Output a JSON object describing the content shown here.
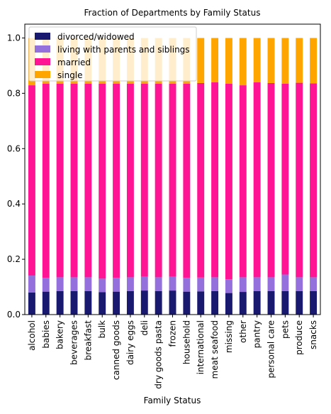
{
  "chart_data": {
    "type": "bar",
    "stacked": true,
    "title": "Fraction of Departments by Family Status",
    "xlabel": "Family Status",
    "ylabel": "",
    "ylim": [
      0,
      1.05
    ],
    "yticks": [
      "0.0",
      "0.2",
      "0.4",
      "0.6",
      "0.8",
      "1.0"
    ],
    "legend_position": "upper-left",
    "categories": [
      "alcohol",
      "babies",
      "bakery",
      "beverages",
      "breakfast",
      "bulk",
      "canned goods",
      "dairy eggs",
      "deli",
      "dry goods pasta",
      "frozen",
      "household",
      "international",
      "meat seafood",
      "missing",
      "other",
      "pantry",
      "personal care",
      "pets",
      "produce",
      "snacks"
    ],
    "series": [
      {
        "name": "divorced/widowed",
        "color": "#191970",
        "alpha": 1,
        "values": [
          0.08,
          0.083,
          0.085,
          0.085,
          0.085,
          0.081,
          0.083,
          0.085,
          0.087,
          0.085,
          0.087,
          0.083,
          0.084,
          0.085,
          0.078,
          0.082,
          0.085,
          0.085,
          0.085,
          0.085,
          0.085
        ]
      },
      {
        "name": "living with parents and siblings",
        "color": "#9370DB",
        "alpha": 1,
        "values": [
          0.061,
          0.05,
          0.05,
          0.05,
          0.05,
          0.049,
          0.05,
          0.05,
          0.05,
          0.05,
          0.05,
          0.05,
          0.05,
          0.05,
          0.05,
          0.053,
          0.05,
          0.05,
          0.06,
          0.05,
          0.05
        ]
      },
      {
        "name": "married",
        "color": "#FF1493",
        "alpha": 1,
        "values": [
          0.688,
          0.702,
          0.7,
          0.7,
          0.7,
          0.705,
          0.702,
          0.7,
          0.698,
          0.7,
          0.698,
          0.702,
          0.703,
          0.705,
          0.707,
          0.694,
          0.705,
          0.702,
          0.69,
          0.703,
          0.701
        ]
      },
      {
        "name": "single",
        "color": "#FFA500",
        "alpha": 1,
        "values": [
          0.171,
          0.165,
          0.165,
          0.165,
          0.165,
          0.165,
          0.165,
          0.165,
          0.165,
          0.165,
          0.165,
          0.165,
          0.163,
          0.16,
          0.165,
          0.171,
          0.16,
          0.163,
          0.165,
          0.162,
          0.164
        ]
      }
    ]
  }
}
